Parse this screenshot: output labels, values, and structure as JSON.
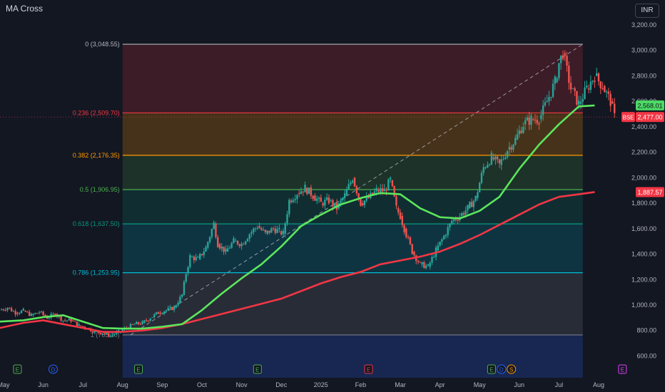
{
  "indicator": {
    "name": "MA Cross"
  },
  "currency": "INR",
  "chart_data": {
    "type": "candlestick",
    "ylim": [
      520,
      3300
    ],
    "price_axis_ticks": [
      "3,200.00",
      "3,000.00",
      "2,800.00",
      "2,600.00",
      "2,400.00",
      "2,200.00",
      "2,000.00",
      "1,800.00",
      "1,600.00",
      "1,400.00",
      "1,200.00",
      "1,000.00",
      "800.00",
      "600.00"
    ],
    "price_axis_values": [
      3200,
      3000,
      2800,
      2600,
      2400,
      2200,
      2000,
      1800,
      1600,
      1400,
      1200,
      1000,
      800,
      600
    ],
    "time_axis": [
      {
        "label": "May",
        "month": 0
      },
      {
        "label": "Jun",
        "month": 1
      },
      {
        "label": "Jul",
        "month": 2
      },
      {
        "label": "Aug",
        "month": 3
      },
      {
        "label": "Sep",
        "month": 4
      },
      {
        "label": "Oct",
        "month": 5
      },
      {
        "label": "Nov",
        "month": 6
      },
      {
        "label": "Dec",
        "month": 7
      },
      {
        "label": "2025",
        "month": 8
      },
      {
        "label": "Feb",
        "month": 9
      },
      {
        "label": "Mar",
        "month": 10
      },
      {
        "label": "Apr",
        "month": 11
      },
      {
        "label": "May",
        "month": 12
      },
      {
        "label": "Jun",
        "month": 13
      },
      {
        "label": "Jul",
        "month": 14
      },
      {
        "label": "Aug",
        "month": 15
      }
    ],
    "fib_start_month": 3,
    "fib_end_month": 14.6,
    "fib_levels": [
      {
        "label": "0 (3,048.55)",
        "price": 3048.55,
        "color": "#b2b5be",
        "fill": "rgba(242,54,69,0.18)"
      },
      {
        "label": "0.236 (2,509.70)",
        "price": 2509.7,
        "color": "#f23645",
        "fill": "rgba(255,152,0,0.22)"
      },
      {
        "label": "0.382 (2,176.35)",
        "price": 2176.35,
        "color": "#ff9800",
        "fill": "rgba(76,175,80,0.18)"
      },
      {
        "label": "0.5 (1,906.95)",
        "price": 1906.95,
        "color": "#4caf50",
        "fill": "rgba(8,153,129,0.18)"
      },
      {
        "label": "0.618 (1,637.50)",
        "price": 1637.5,
        "color": "#089981",
        "fill": "rgba(0,188,212,0.18)"
      },
      {
        "label": "0.786 (1,253.95)",
        "price": 1253.95,
        "color": "#00bcd4",
        "fill": "rgba(120,123,134,0.22)"
      },
      {
        "label": "1 (765.30)",
        "price": 765.3,
        "color": "#787b86",
        "fill": "rgba(41,98,255,0.22)"
      }
    ],
    "trend_line": {
      "from": [
        3.2,
        765.3
      ],
      "to": [
        14.6,
        3048.55
      ]
    },
    "price_series": [
      [
        -0.1,
        960
      ],
      [
        0.1,
        980
      ],
      [
        0.3,
        940
      ],
      [
        0.5,
        955
      ],
      [
        0.7,
        920
      ],
      [
        0.9,
        945
      ],
      [
        1.1,
        900
      ],
      [
        1.3,
        930
      ],
      [
        1.5,
        880
      ],
      [
        1.7,
        880
      ],
      [
        1.9,
        840
      ],
      [
        2.1,
        820
      ],
      [
        2.3,
        790
      ],
      [
        2.5,
        780
      ],
      [
        2.7,
        760
      ],
      [
        2.9,
        790
      ],
      [
        3.1,
        820
      ],
      [
        3.3,
        850
      ],
      [
        3.5,
        860
      ],
      [
        3.7,
        900
      ],
      [
        3.9,
        940
      ],
      [
        4.1,
        960
      ],
      [
        4.3,
        980
      ],
      [
        4.5,
        1080
      ],
      [
        4.6,
        1250
      ],
      [
        4.7,
        1380
      ],
      [
        4.9,
        1360
      ],
      [
        5.1,
        1450
      ],
      [
        5.3,
        1640
      ],
      [
        5.4,
        1480
      ],
      [
        5.6,
        1420
      ],
      [
        5.8,
        1500
      ],
      [
        6.0,
        1480
      ],
      [
        6.2,
        1560
      ],
      [
        6.4,
        1620
      ],
      [
        6.6,
        1560
      ],
      [
        6.8,
        1600
      ],
      [
        6.95,
        1580
      ],
      [
        7.05,
        1560
      ],
      [
        7.2,
        1820
      ],
      [
        7.4,
        1880
      ],
      [
        7.6,
        1920
      ],
      [
        7.8,
        1860
      ],
      [
        8.0,
        1800
      ],
      [
        8.2,
        1820
      ],
      [
        8.4,
        1760
      ],
      [
        8.6,
        1860
      ],
      [
        8.8,
        2000
      ],
      [
        9.0,
        1800
      ],
      [
        9.2,
        1840
      ],
      [
        9.4,
        1900
      ],
      [
        9.6,
        1900
      ],
      [
        9.75,
        1980
      ],
      [
        9.9,
        1760
      ],
      [
        10.0,
        1700
      ],
      [
        10.1,
        1600
      ],
      [
        10.3,
        1420
      ],
      [
        10.5,
        1320
      ],
      [
        10.7,
        1300
      ],
      [
        10.9,
        1430
      ],
      [
        11.1,
        1540
      ],
      [
        11.3,
        1660
      ],
      [
        11.5,
        1700
      ],
      [
        11.7,
        1760
      ],
      [
        11.9,
        1840
      ],
      [
        12.1,
        2080
      ],
      [
        12.3,
        2160
      ],
      [
        12.5,
        2100
      ],
      [
        12.7,
        2220
      ],
      [
        12.9,
        2300
      ],
      [
        13.1,
        2420
      ],
      [
        13.3,
        2460
      ],
      [
        13.5,
        2460
      ],
      [
        13.7,
        2600
      ],
      [
        13.9,
        2750
      ],
      [
        14.0,
        2900
      ],
      [
        14.1,
        2980
      ],
      [
        14.3,
        2700
      ],
      [
        14.5,
        2580
      ],
      [
        14.7,
        2700
      ],
      [
        14.9,
        2800
      ],
      [
        15.1,
        2720
      ],
      [
        15.3,
        2600
      ],
      [
        15.4,
        2477
      ]
    ],
    "ma_fast": [
      [
        -0.1,
        870
      ],
      [
        0.5,
        880
      ],
      [
        1.0,
        905
      ],
      [
        1.5,
        920
      ],
      [
        2.0,
        870
      ],
      [
        2.5,
        820
      ],
      [
        3.0,
        815
      ],
      [
        3.5,
        815
      ],
      [
        4.0,
        830
      ],
      [
        4.5,
        850
      ],
      [
        5.0,
        960
      ],
      [
        5.5,
        1090
      ],
      [
        6.0,
        1210
      ],
      [
        6.5,
        1320
      ],
      [
        7.0,
        1460
      ],
      [
        7.5,
        1620
      ],
      [
        8.0,
        1710
      ],
      [
        8.5,
        1790
      ],
      [
        9.0,
        1840
      ],
      [
        9.5,
        1880
      ],
      [
        10.0,
        1870
      ],
      [
        10.5,
        1760
      ],
      [
        11.0,
        1690
      ],
      [
        11.5,
        1680
      ],
      [
        12.0,
        1740
      ],
      [
        12.5,
        1850
      ],
      [
        13.0,
        2070
      ],
      [
        13.5,
        2260
      ],
      [
        14.0,
        2420
      ],
      [
        14.5,
        2560
      ],
      [
        14.9,
        2568
      ]
    ],
    "ma_slow": [
      [
        -0.1,
        820
      ],
      [
        0.5,
        860
      ],
      [
        1.0,
        880
      ],
      [
        1.5,
        850
      ],
      [
        2.0,
        820
      ],
      [
        2.5,
        790
      ],
      [
        3.0,
        790
      ],
      [
        3.5,
        800
      ],
      [
        4.0,
        820
      ],
      [
        4.5,
        850
      ],
      [
        5.0,
        890
      ],
      [
        5.5,
        930
      ],
      [
        6.0,
        970
      ],
      [
        6.5,
        1010
      ],
      [
        7.0,
        1050
      ],
      [
        7.5,
        1110
      ],
      [
        8.0,
        1170
      ],
      [
        8.5,
        1220
      ],
      [
        9.0,
        1260
      ],
      [
        9.5,
        1320
      ],
      [
        10.0,
        1350
      ],
      [
        10.5,
        1380
      ],
      [
        11.0,
        1420
      ],
      [
        11.5,
        1480
      ],
      [
        12.0,
        1550
      ],
      [
        12.5,
        1630
      ],
      [
        13.0,
        1710
      ],
      [
        13.5,
        1790
      ],
      [
        14.0,
        1850
      ],
      [
        14.5,
        1870
      ],
      [
        14.9,
        1887.57
      ]
    ],
    "price_badges": [
      {
        "name": "ma-fast-badge",
        "value": "2,568.01",
        "price": 2568.01,
        "bg": "#4cd964",
        "fg": "#131722"
      },
      {
        "name": "last-price-badge",
        "value": "2,477.00",
        "price": 2477.0,
        "bg": "#f23645",
        "fg": "#ffffff",
        "tag": "BSE"
      },
      {
        "name": "ma-slow-badge",
        "value": "1,887.57",
        "price": 1887.57,
        "bg": "#f23645",
        "fg": "#ffffff"
      }
    ],
    "events": [
      {
        "letter": "E",
        "month": 0.35,
        "color": "#4caf50"
      },
      {
        "letter": "D",
        "month": 1.25,
        "color": "#2962ff"
      },
      {
        "letter": "E",
        "month": 3.4,
        "color": "#4caf50"
      },
      {
        "letter": "E",
        "month": 6.4,
        "color": "#4caf50"
      },
      {
        "letter": "E",
        "month": 9.2,
        "color": "#f23645"
      },
      {
        "letter": "E",
        "month": 12.3,
        "color": "#4caf50"
      },
      {
        "letter": "D",
        "month": 12.55,
        "color": "#2962ff"
      },
      {
        "letter": "S",
        "month": 12.8,
        "color": "#ff9800"
      },
      {
        "letter": "E",
        "month": 15.6,
        "color": "#e040fb"
      }
    ]
  }
}
